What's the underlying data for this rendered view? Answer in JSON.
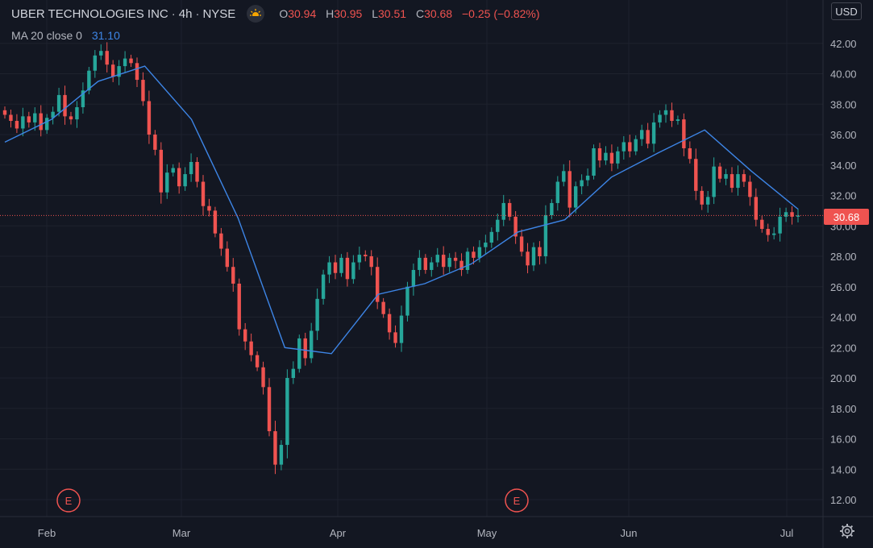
{
  "header": {
    "symbol": "UBER TECHNOLOGIES INC",
    "interval": "4h",
    "exchange": "NYSE",
    "ohlc": {
      "open_label": "O",
      "open": "30.94",
      "high_label": "H",
      "high": "30.95",
      "low_label": "L",
      "low": "30.51",
      "close_label": "C",
      "close": "30.68",
      "change": "−0.25 (−0.82%)"
    },
    "indicator_label": "MA 20 close 0",
    "indicator_value": "31.10"
  },
  "currency": "USD",
  "last_price": "30.68",
  "colors": {
    "up": "#26a69a",
    "down": "#ef5350",
    "ma": "#3d85e6",
    "background": "#131722"
  },
  "icons": [
    "market-status-icon",
    "settings-gear-icon",
    "earnings-event-icon"
  ],
  "chart_data": {
    "type": "candlestick",
    "title": "UBER TECHNOLOGIES INC · 4h · NYSE",
    "y_axis": {
      "ticks": [
        12,
        14,
        16,
        18,
        20,
        22,
        24,
        26,
        28,
        30,
        32,
        34,
        36,
        38,
        40,
        42
      ],
      "range": [
        11,
        43
      ]
    },
    "x_axis": {
      "ticks": [
        "Feb",
        "Mar",
        "Apr",
        "May",
        "Jun",
        "Jul"
      ]
    },
    "earnings_markers": [
      {
        "label": "E",
        "near": "Feb"
      },
      {
        "label": "E",
        "near": "May"
      }
    ],
    "price_series": [
      [
        "start",
        37.3
      ],
      [
        "",
        36.9
      ],
      [
        "",
        36.4
      ],
      [
        "",
        37.2
      ],
      [
        "",
        36.8
      ],
      [
        "",
        37.4
      ],
      [
        "",
        36.3
      ],
      [
        "",
        37.1
      ],
      [
        "",
        37.5
      ],
      [
        "",
        38.6
      ],
      [
        "",
        37.2
      ],
      [
        "",
        37.0
      ],
      [
        "",
        37.8
      ],
      [
        "",
        38.9
      ],
      [
        "",
        40.2
      ],
      [
        "",
        41.2
      ],
      [
        "",
        41.5
      ],
      [
        "",
        40.6
      ],
      [
        "",
        39.8
      ],
      [
        "",
        40.5
      ],
      [
        "",
        41.0
      ],
      [
        "",
        40.7
      ],
      [
        "",
        39.6
      ],
      [
        "",
        38.2
      ],
      [
        "",
        36.0
      ],
      [
        "",
        35.0
      ],
      [
        "",
        32.2
      ],
      [
        "",
        33.5
      ],
      [
        "",
        33.8
      ],
      [
        "",
        32.6
      ],
      [
        "",
        33.4
      ],
      [
        "",
        34.2
      ],
      [
        "",
        32.9
      ],
      [
        "",
        31.3
      ],
      [
        "",
        31.0
      ],
      [
        "",
        29.5
      ],
      [
        "",
        28.5
      ],
      [
        "",
        27.3
      ],
      [
        "",
        26.2
      ],
      [
        "",
        23.2
      ],
      [
        "",
        22.4
      ],
      [
        "",
        21.5
      ],
      [
        "",
        20.7
      ],
      [
        "",
        19.4
      ],
      [
        "",
        16.5
      ],
      [
        "",
        14.3
      ],
      [
        "",
        15.6
      ],
      [
        "",
        20.0
      ],
      [
        "",
        20.6
      ],
      [
        "",
        22.6
      ],
      [
        "",
        21.3
      ],
      [
        "",
        23.1
      ],
      [
        "",
        25.2
      ],
      [
        "",
        26.8
      ],
      [
        "",
        27.6
      ],
      [
        "",
        26.9
      ],
      [
        "",
        27.9
      ],
      [
        "",
        26.5
      ],
      [
        "",
        27.6
      ],
      [
        "",
        28.1
      ],
      [
        "",
        28.0
      ],
      [
        "",
        27.3
      ],
      [
        "",
        25.0
      ],
      [
        "",
        24.2
      ],
      [
        "",
        23.0
      ],
      [
        "",
        22.3
      ],
      [
        "",
        24.1
      ],
      [
        "",
        26.0
      ],
      [
        "",
        27.1
      ],
      [
        "",
        27.9
      ],
      [
        "",
        27.1
      ],
      [
        "",
        27.6
      ],
      [
        "",
        28.1
      ],
      [
        "",
        27.3
      ],
      [
        "",
        27.9
      ],
      [
        "",
        27.7
      ],
      [
        "",
        27.1
      ],
      [
        "",
        28.3
      ],
      [
        "",
        27.9
      ],
      [
        "",
        28.6
      ],
      [
        "",
        28.9
      ],
      [
        "",
        29.6
      ],
      [
        "",
        30.4
      ],
      [
        "",
        31.5
      ],
      [
        "",
        30.6
      ],
      [
        "",
        29.3
      ],
      [
        "",
        28.3
      ],
      [
        "",
        27.4
      ],
      [
        "",
        28.6
      ],
      [
        "",
        28.0
      ],
      [
        "",
        30.7
      ],
      [
        "",
        31.5
      ],
      [
        "",
        32.9
      ],
      [
        "",
        33.6
      ],
      [
        "",
        31.2
      ],
      [
        "",
        32.6
      ],
      [
        "",
        33.0
      ],
      [
        "",
        33.3
      ],
      [
        "",
        35.1
      ],
      [
        "",
        34.3
      ],
      [
        "",
        34.8
      ],
      [
        "",
        34.1
      ],
      [
        "",
        34.9
      ],
      [
        "",
        35.5
      ],
      [
        "",
        34.9
      ],
      [
        "",
        35.7
      ],
      [
        "",
        36.3
      ],
      [
        "",
        35.4
      ],
      [
        "",
        36.8
      ],
      [
        "",
        37.3
      ],
      [
        "",
        37.6
      ],
      [
        "",
        36.9
      ],
      [
        "",
        37.0
      ],
      [
        "",
        35.1
      ],
      [
        "",
        34.4
      ],
      [
        "",
        32.3
      ],
      [
        "",
        31.4
      ],
      [
        "",
        31.9
      ],
      [
        "",
        33.9
      ],
      [
        "",
        33.1
      ],
      [
        "",
        33.4
      ],
      [
        "",
        32.5
      ],
      [
        "",
        33.4
      ],
      [
        "",
        32.9
      ],
      [
        "",
        31.9
      ],
      [
        "",
        30.4
      ],
      [
        "",
        29.8
      ],
      [
        "",
        29.4
      ],
      [
        "",
        29.5
      ],
      [
        "",
        30.6
      ],
      [
        "",
        30.9
      ],
      [
        "",
        30.6
      ],
      [
        "end",
        30.68
      ]
    ],
    "ma20": {
      "label": "MA 20 close 0",
      "points": [
        [
          "start",
          35.5
        ],
        [
          "early Feb",
          37.0
        ],
        [
          "mid Feb",
          39.5
        ],
        [
          "late Feb",
          40.5
        ],
        [
          "early Mar",
          37.0
        ],
        [
          "mid Mar",
          30.5
        ],
        [
          "late Mar",
          22.0
        ],
        [
          "Apr",
          21.6
        ],
        [
          "early Apr",
          25.5
        ],
        [
          "mid Apr",
          26.2
        ],
        [
          "late Apr",
          27.5
        ],
        [
          "May",
          29.6
        ],
        [
          "mid May",
          30.4
        ],
        [
          "late May",
          33.2
        ],
        [
          "Jun",
          34.8
        ],
        [
          "mid Jun",
          36.3
        ],
        [
          "late Jun",
          33.6
        ],
        [
          "end",
          31.1
        ]
      ]
    }
  }
}
